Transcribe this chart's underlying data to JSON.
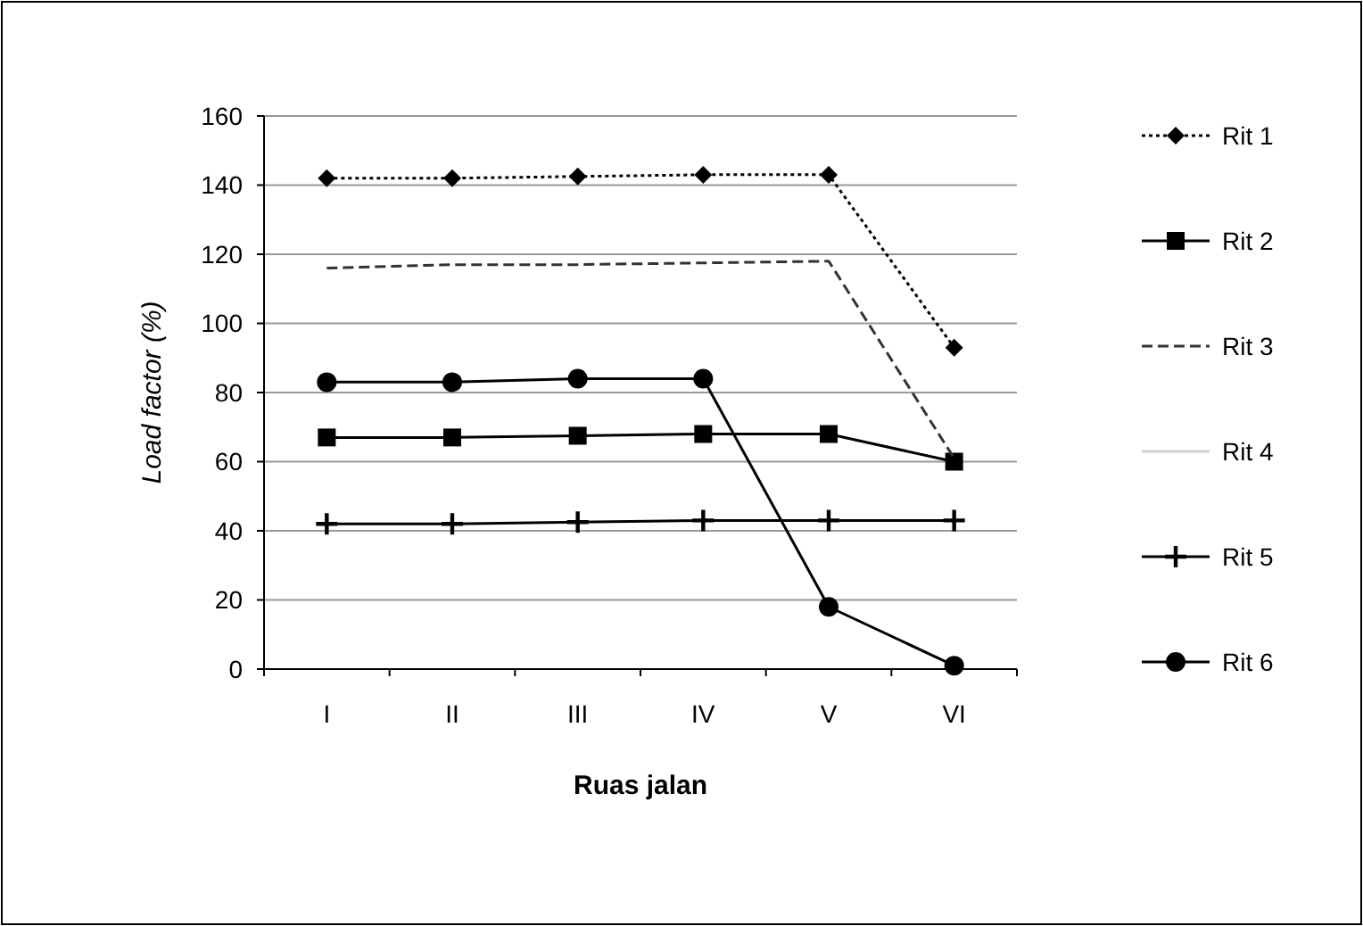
{
  "chart_data": {
    "type": "line",
    "xlabel": "Ruas jalan",
    "ylabel": "Load factor (%)",
    "categories": [
      "I",
      "II",
      "III",
      "IV",
      "V",
      "VI"
    ],
    "ylim": [
      0,
      160
    ],
    "yticks": [
      0,
      20,
      40,
      60,
      80,
      100,
      120,
      140,
      160
    ],
    "grid": "y",
    "legend": "right",
    "series": [
      {
        "name": "Rit 1",
        "color": "#000000",
        "marker": "diamond",
        "line_style": "dotted",
        "values": [
          142,
          142,
          142.5,
          143,
          143,
          93
        ]
      },
      {
        "name": "Rit 2",
        "color": "#000000",
        "marker": "square",
        "line_style": "solid",
        "values": [
          67,
          67,
          67.5,
          68,
          68,
          60
        ]
      },
      {
        "name": "Rit 3",
        "color": "#333333",
        "marker": "none",
        "line_style": "dashed",
        "values": [
          116,
          117,
          117,
          117.5,
          118,
          61
        ]
      },
      {
        "name": "Rit 4",
        "color": "#d0d0d0",
        "marker": "none",
        "line_style": "solid",
        "values": [
          null,
          null,
          null,
          null,
          null,
          null
        ]
      },
      {
        "name": "Rit 5",
        "color": "#000000",
        "marker": "cross",
        "line_style": "solid",
        "values": [
          42,
          42,
          42.5,
          43,
          43,
          43
        ]
      },
      {
        "name": "Rit 6",
        "color": "#000000",
        "marker": "circle",
        "line_style": "solid",
        "values": [
          83,
          83,
          84,
          84,
          18,
          1
        ]
      }
    ]
  }
}
